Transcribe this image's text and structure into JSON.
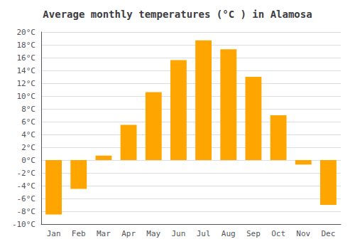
{
  "chart_data": {
    "type": "bar",
    "title": "Average monthly temperatures (°C ) in Alamosa",
    "categories": [
      "Jan",
      "Feb",
      "Mar",
      "Apr",
      "May",
      "Jun",
      "Jul",
      "Aug",
      "Sep",
      "Oct",
      "Nov",
      "Dec"
    ],
    "values": [
      -8.5,
      -4.5,
      0.7,
      5.5,
      10.6,
      15.6,
      18.7,
      17.3,
      13.0,
      7.0,
      -0.7,
      -7.0
    ],
    "color": "#FFA500",
    "ylim": [
      -10,
      20
    ],
    "yticks": [
      {
        "value": -10,
        "label": "-10°C"
      },
      {
        "value": -8,
        "label": "-8°C"
      },
      {
        "value": -6,
        "label": "-6°C"
      },
      {
        "value": -4,
        "label": "-4°C"
      },
      {
        "value": -2,
        "label": "-2°C"
      },
      {
        "value": 0,
        "label": "0°C"
      },
      {
        "value": 2,
        "label": "2°C"
      },
      {
        "value": 4,
        "label": "4°C"
      },
      {
        "value": 6,
        "label": "6°C"
      },
      {
        "value": 8,
        "label": "8°C"
      },
      {
        "value": 10,
        "label": "10°C"
      },
      {
        "value": 12,
        "label": "12°C"
      },
      {
        "value": 14,
        "label": "14°C"
      },
      {
        "value": 16,
        "label": "16°C"
      },
      {
        "value": 18,
        "label": "18°C"
      },
      {
        "value": 20,
        "label": "20°C"
      }
    ],
    "grid": true
  }
}
